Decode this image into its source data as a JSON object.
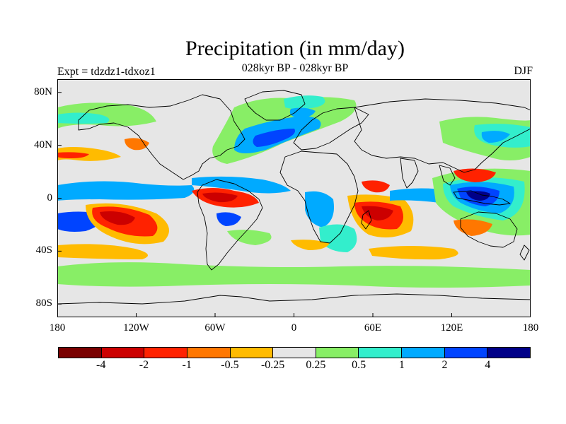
{
  "title": "Precipitation (in mm/day)",
  "subtitle": "028kyr BP - 028kyr BP",
  "left_string": "Expt = tdzdz1-tdxoz1",
  "right_string": "DJF",
  "map": {
    "projection": "cylindrical-equidistant",
    "lon_range": [
      -180,
      180
    ],
    "lat_range": [
      -90,
      90
    ],
    "background_color": "#e6e6e6",
    "coastline_color": "#000000",
    "lat_ticks": [
      {
        "value": 80,
        "label": "80N"
      },
      {
        "value": 40,
        "label": "40N"
      },
      {
        "value": 0,
        "label": "0"
      },
      {
        "value": -40,
        "label": "40S"
      },
      {
        "value": -80,
        "label": "80S"
      }
    ],
    "lon_ticks": [
      {
        "value": -180,
        "label": "180"
      },
      {
        "value": -120,
        "label": "120W"
      },
      {
        "value": -60,
        "label": "60W"
      },
      {
        "value": 0,
        "label": "0"
      },
      {
        "value": 60,
        "label": "60E"
      },
      {
        "value": 120,
        "label": "120E"
      },
      {
        "value": 180,
        "label": "180"
      }
    ]
  },
  "colorbar": {
    "colors": [
      "#7a0000",
      "#cc0000",
      "#ff2200",
      "#ff7700",
      "#ffbb00",
      "#e6e6e6",
      "#88ee66",
      "#33eecc",
      "#00aaff",
      "#0044ff",
      "#000088"
    ],
    "labels": [
      "-4",
      "-2",
      "-1",
      "-0.5",
      "-0.25",
      "0.25",
      "0.5",
      "1",
      "2",
      "4"
    ]
  }
}
